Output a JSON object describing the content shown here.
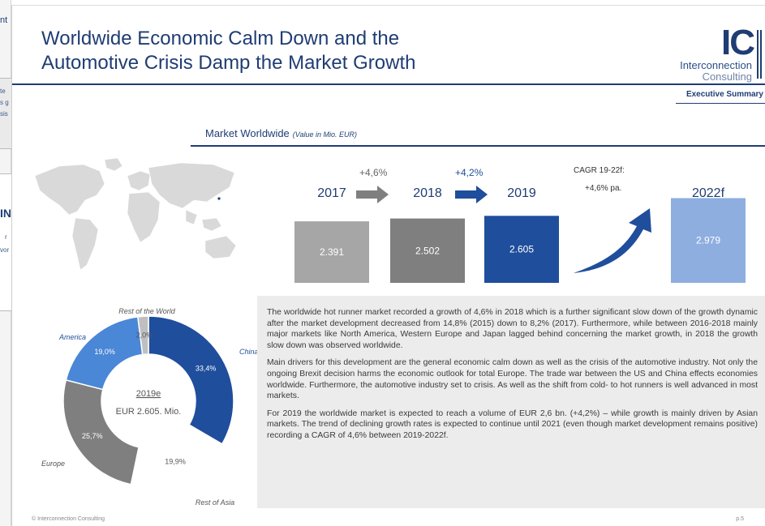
{
  "background_slide": {
    "fragments": [
      "nt",
      "te",
      "s g",
      "sis",
      "IN",
      "r",
      "vor"
    ]
  },
  "slide": {
    "title_line1": "Worldwide Economic Calm Down and the",
    "title_line2": "Automotive Crisis Damp the Market Growth",
    "logo": {
      "mark": "IC",
      "name_line1": "Interconnection",
      "name_line2": "Consulting"
    },
    "section_label": "Executive Summary",
    "market_title": "Market Worldwide",
    "market_subtitle": "(Value in Mio. EUR)",
    "colors": {
      "primary": "#1f3d73",
      "bar_2017": "#a6a6a6",
      "bar_2018": "#7f7f7f",
      "bar_2019": "#1f4e9c",
      "bar_2022": "#8eaee0",
      "arrow": "#1f4e9c"
    }
  },
  "chart_data": [
    {
      "type": "bar",
      "categories": [
        "2017",
        "2018",
        "2019",
        "2022f"
      ],
      "values": [
        2391,
        2502,
        2605,
        2979
      ],
      "value_labels": [
        "2.391",
        "2.502",
        "2.605",
        "2.979"
      ],
      "growth_labels": [
        "+4,6%",
        "+4,2%"
      ],
      "cagr_label_line1": "CAGR 19-22f:",
      "cagr_label_line2": "+4,6% pa."
    },
    {
      "type": "pie",
      "center_line1": "2019e",
      "center_line2": "EUR 2.605. Mio.",
      "slices": [
        {
          "name": "China",
          "value": 33.4,
          "label": "33,4%",
          "color": "#1f4e9c"
        },
        {
          "name": "Rest of Asia",
          "value": 19.9,
          "label": "19,9%",
          "color": "#ffffff"
        },
        {
          "name": "Europe",
          "value": 25.7,
          "label": "25,7%",
          "color": "#7f7f7f"
        },
        {
          "name": "America",
          "value": 19.0,
          "label": "19,0%",
          "color": "#4a87d6"
        },
        {
          "name": "Rest of the World",
          "value": 2.0,
          "label": "2,0%",
          "color": "#bfbfbf"
        }
      ]
    }
  ],
  "text": {
    "p1": "The worldwide hot runner market recorded a growth of 4,6% in 2018 which is a further significant slow down of the growth dynamic after the market development decreased from 14,8% (2015) down to 8,2% (2017). Furthermore, while between 2016-2018 mainly major markets like North America, Western Europe and Japan lagged behind concerning the market growth, in 2018 the growth slow down was observed worldwide.",
    "p2": "Main drivers for this development are the general economic calm down as well as the crisis of the automotive industry. Not only the ongoing Brexit decision harms the economic outlook for total Europe. The trade war between the US and China effects economies worldwide. Furthermore, the automotive industry set to crisis. As well as the shift from cold- to hot runners is well advanced in most markets.",
    "p3": "For 2019 the worldwide market is expected to reach a volume of EUR 2,6 bn. (+4,2%) – while growth is mainly driven by Asian markets. The trend of declining growth rates is expected to continue until 2021 (even though market development remains positive) recording a CAGR of 4,6% between 2019-2022f."
  },
  "footer": {
    "copyright": "© Interconnection Consulting",
    "page": "p.5"
  }
}
